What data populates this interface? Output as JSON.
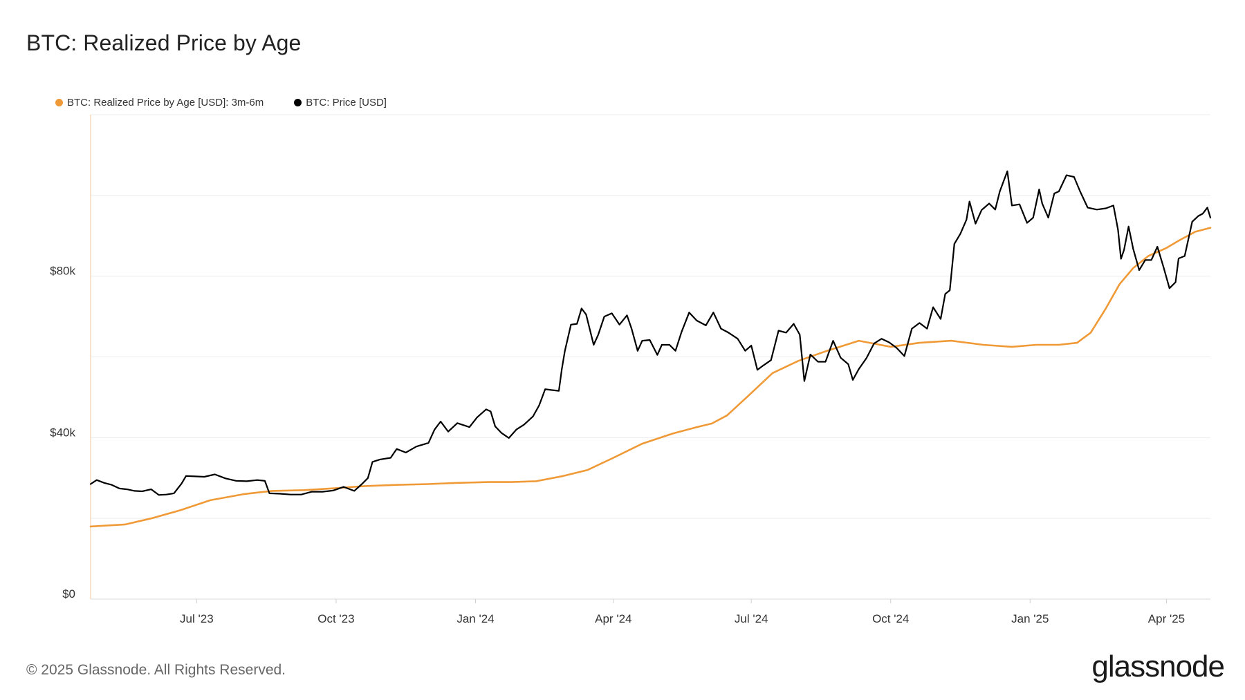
{
  "title": "BTC: Realized Price by Age",
  "footer": "© 2025 Glassnode. All Rights Reserved.",
  "brand": "glassnode",
  "colors": {
    "realized": "#f09a37",
    "price": "#000000",
    "grid": "#ececec",
    "axis": "#f5d9b8"
  },
  "chart_data": {
    "type": "line",
    "title": "BTC: Realized Price by Age",
    "xlabel": "",
    "ylabel": "",
    "ylim": [
      0,
      120000
    ],
    "xlim": [
      "2023-04-22",
      "2025-04-30"
    ],
    "y_ticks": [
      {
        "value": 0,
        "label": "$0"
      },
      {
        "value": 40000,
        "label": "$40k"
      },
      {
        "value": 80000,
        "label": "$80k"
      }
    ],
    "y_grid": [
      0,
      20000,
      40000,
      60000,
      80000,
      100000,
      120000
    ],
    "x_ticks": [
      {
        "date": "2023-07-01",
        "label": "Jul '23"
      },
      {
        "date": "2023-10-01",
        "label": "Oct '23"
      },
      {
        "date": "2024-01-01",
        "label": "Jan '24"
      },
      {
        "date": "2024-04-01",
        "label": "Apr '24"
      },
      {
        "date": "2024-07-01",
        "label": "Jul '24"
      },
      {
        "date": "2024-10-01",
        "label": "Oct '24"
      },
      {
        "date": "2025-01-01",
        "label": "Jan '25"
      },
      {
        "date": "2025-04-01",
        "label": "Apr '25"
      }
    ],
    "legend": [
      "BTC: Realized Price by Age [USD]: 3m-6m",
      "BTC: Price [USD]"
    ],
    "series": [
      {
        "name": "BTC: Realized Price by Age [USD]: 3m-6m",
        "color": "#f09a37",
        "x": [
          "2023-04-22",
          "2023-05-15",
          "2023-06-01",
          "2023-06-20",
          "2023-07-10",
          "2023-08-01",
          "2023-08-20",
          "2023-09-10",
          "2023-10-01",
          "2023-10-20",
          "2023-11-10",
          "2023-12-01",
          "2023-12-20",
          "2024-01-10",
          "2024-01-25",
          "2024-02-10",
          "2024-02-28",
          "2024-03-15",
          "2024-04-01",
          "2024-04-20",
          "2024-05-10",
          "2024-05-25",
          "2024-06-05",
          "2024-06-15",
          "2024-06-28",
          "2024-07-15",
          "2024-08-01",
          "2024-08-20",
          "2024-09-10",
          "2024-10-01",
          "2024-10-20",
          "2024-11-10",
          "2024-12-01",
          "2024-12-20",
          "2025-01-05",
          "2025-01-20",
          "2025-02-01",
          "2025-02-10",
          "2025-02-20",
          "2025-03-01",
          "2025-03-10",
          "2025-03-20",
          "2025-04-01",
          "2025-04-10",
          "2025-04-20",
          "2025-04-30"
        ],
        "values": [
          18000,
          18500,
          20000,
          22000,
          24500,
          26000,
          26800,
          27000,
          27500,
          28000,
          28300,
          28500,
          28800,
          29000,
          29000,
          29200,
          30500,
          32000,
          35000,
          38500,
          41000,
          42500,
          43500,
          45500,
          50000,
          56000,
          59000,
          61500,
          64000,
          62500,
          63500,
          64000,
          63000,
          62500,
          63000,
          63000,
          63500,
          66000,
          72000,
          78000,
          82000,
          85000,
          87000,
          89000,
          91000,
          92000
        ]
      },
      {
        "name": "BTC: Price [USD]",
        "color": "#000000",
        "x": [
          "2023-04-22",
          "2023-04-26",
          "2023-05-01",
          "2023-05-06",
          "2023-05-11",
          "2023-05-16",
          "2023-05-21",
          "2023-05-26",
          "2023-06-01",
          "2023-06-06",
          "2023-06-11",
          "2023-06-16",
          "2023-06-21",
          "2023-06-24",
          "2023-06-30",
          "2023-07-06",
          "2023-07-13",
          "2023-07-20",
          "2023-07-27",
          "2023-08-03",
          "2023-08-10",
          "2023-08-15",
          "2023-08-18",
          "2023-08-25",
          "2023-09-01",
          "2023-09-08",
          "2023-09-15",
          "2023-09-22",
          "2023-09-29",
          "2023-10-06",
          "2023-10-13",
          "2023-10-18",
          "2023-10-22",
          "2023-10-25",
          "2023-10-30",
          "2023-11-06",
          "2023-11-10",
          "2023-11-16",
          "2023-11-23",
          "2023-12-01",
          "2023-12-05",
          "2023-12-09",
          "2023-12-14",
          "2023-12-20",
          "2023-12-28",
          "2024-01-02",
          "2024-01-08",
          "2024-01-11",
          "2024-01-14",
          "2024-01-18",
          "2024-01-23",
          "2024-01-28",
          "2024-02-02",
          "2024-02-08",
          "2024-02-12",
          "2024-02-16",
          "2024-02-20",
          "2024-02-25",
          "2024-02-27",
          "2024-02-29",
          "2024-03-04",
          "2024-03-08",
          "2024-03-11",
          "2024-03-14",
          "2024-03-19",
          "2024-03-22",
          "2024-03-26",
          "2024-03-31",
          "2024-04-05",
          "2024-04-10",
          "2024-04-13",
          "2024-04-17",
          "2024-04-20",
          "2024-04-25",
          "2024-04-30",
          "2024-05-03",
          "2024-05-08",
          "2024-05-12",
          "2024-05-16",
          "2024-05-21",
          "2024-05-26",
          "2024-06-01",
          "2024-06-06",
          "2024-06-11",
          "2024-06-16",
          "2024-06-22",
          "2024-06-27",
          "2024-07-01",
          "2024-07-05",
          "2024-07-09",
          "2024-07-14",
          "2024-07-19",
          "2024-07-24",
          "2024-07-29",
          "2024-08-02",
          "2024-08-05",
          "2024-08-09",
          "2024-08-14",
          "2024-08-19",
          "2024-08-24",
          "2024-08-29",
          "2024-09-03",
          "2024-09-06",
          "2024-09-10",
          "2024-09-15",
          "2024-09-20",
          "2024-09-25",
          "2024-09-30",
          "2024-10-05",
          "2024-10-10",
          "2024-10-15",
          "2024-10-20",
          "2024-10-25",
          "2024-10-29",
          "2024-11-03",
          "2024-11-06",
          "2024-11-09",
          "2024-11-12",
          "2024-11-16",
          "2024-11-20",
          "2024-11-22",
          "2024-11-26",
          "2024-11-30",
          "2024-12-05",
          "2024-12-09",
          "2024-12-12",
          "2024-12-17",
          "2024-12-20",
          "2024-12-25",
          "2024-12-30",
          "2025-01-03",
          "2025-01-07",
          "2025-01-09",
          "2025-01-13",
          "2025-01-17",
          "2025-01-20",
          "2025-01-25",
          "2025-01-30",
          "2025-02-03",
          "2025-02-08",
          "2025-02-14",
          "2025-02-20",
          "2025-02-25",
          "2025-02-28",
          "2025-03-02",
          "2025-03-04",
          "2025-03-07",
          "2025-03-10",
          "2025-03-14",
          "2025-03-18",
          "2025-03-22",
          "2025-03-26",
          "2025-03-30",
          "2025-04-03",
          "2025-04-07",
          "2025-04-09",
          "2025-04-13",
          "2025-04-18",
          "2025-04-22",
          "2025-04-25",
          "2025-04-28",
          "2025-04-30"
        ],
        "values": [
          28500,
          29500,
          28800,
          28300,
          27400,
          27200,
          26800,
          26700,
          27200,
          25800,
          25900,
          26200,
          28600,
          30500,
          30400,
          30300,
          30900,
          29900,
          29300,
          29200,
          29500,
          29300,
          26200,
          26100,
          25900,
          25900,
          26600,
          26600,
          26900,
          27800,
          26800,
          28500,
          30000,
          34000,
          34600,
          35000,
          37200,
          36300,
          37800,
          38700,
          42000,
          44000,
          41500,
          43600,
          42600,
          45000,
          47000,
          46500,
          42800,
          41200,
          39900,
          42000,
          43200,
          45300,
          48000,
          52000,
          51800,
          51600,
          57000,
          61500,
          68000,
          68200,
          72000,
          70500,
          63000,
          65500,
          70000,
          70800,
          68000,
          70300,
          67000,
          61500,
          64000,
          64200,
          60500,
          63000,
          63000,
          61500,
          66200,
          71000,
          69000,
          67800,
          71000,
          67000,
          66000,
          64500,
          61500,
          62800,
          56800,
          57900,
          59200,
          66500,
          66000,
          68200,
          65500,
          54000,
          60600,
          58800,
          58800,
          64000,
          59800,
          58200,
          54300,
          57000,
          59700,
          63300,
          64500,
          63600,
          62200,
          60200,
          67000,
          68400,
          67000,
          72300,
          69400,
          75600,
          76500,
          88000,
          90500,
          94000,
          98500,
          93000,
          96400,
          98000,
          96500,
          101000,
          106000,
          97500,
          97800,
          93200,
          94500,
          101500,
          98000,
          94500,
          100500,
          101000,
          105000,
          104600,
          101000,
          97000,
          96500,
          96800,
          97500,
          91500,
          84300,
          86500,
          92300,
          86800,
          81500,
          84000,
          84000,
          87300,
          82300,
          77000,
          78500,
          84400,
          85000,
          93500,
          94900,
          95500,
          97000,
          94500
        ]
      }
    ]
  }
}
